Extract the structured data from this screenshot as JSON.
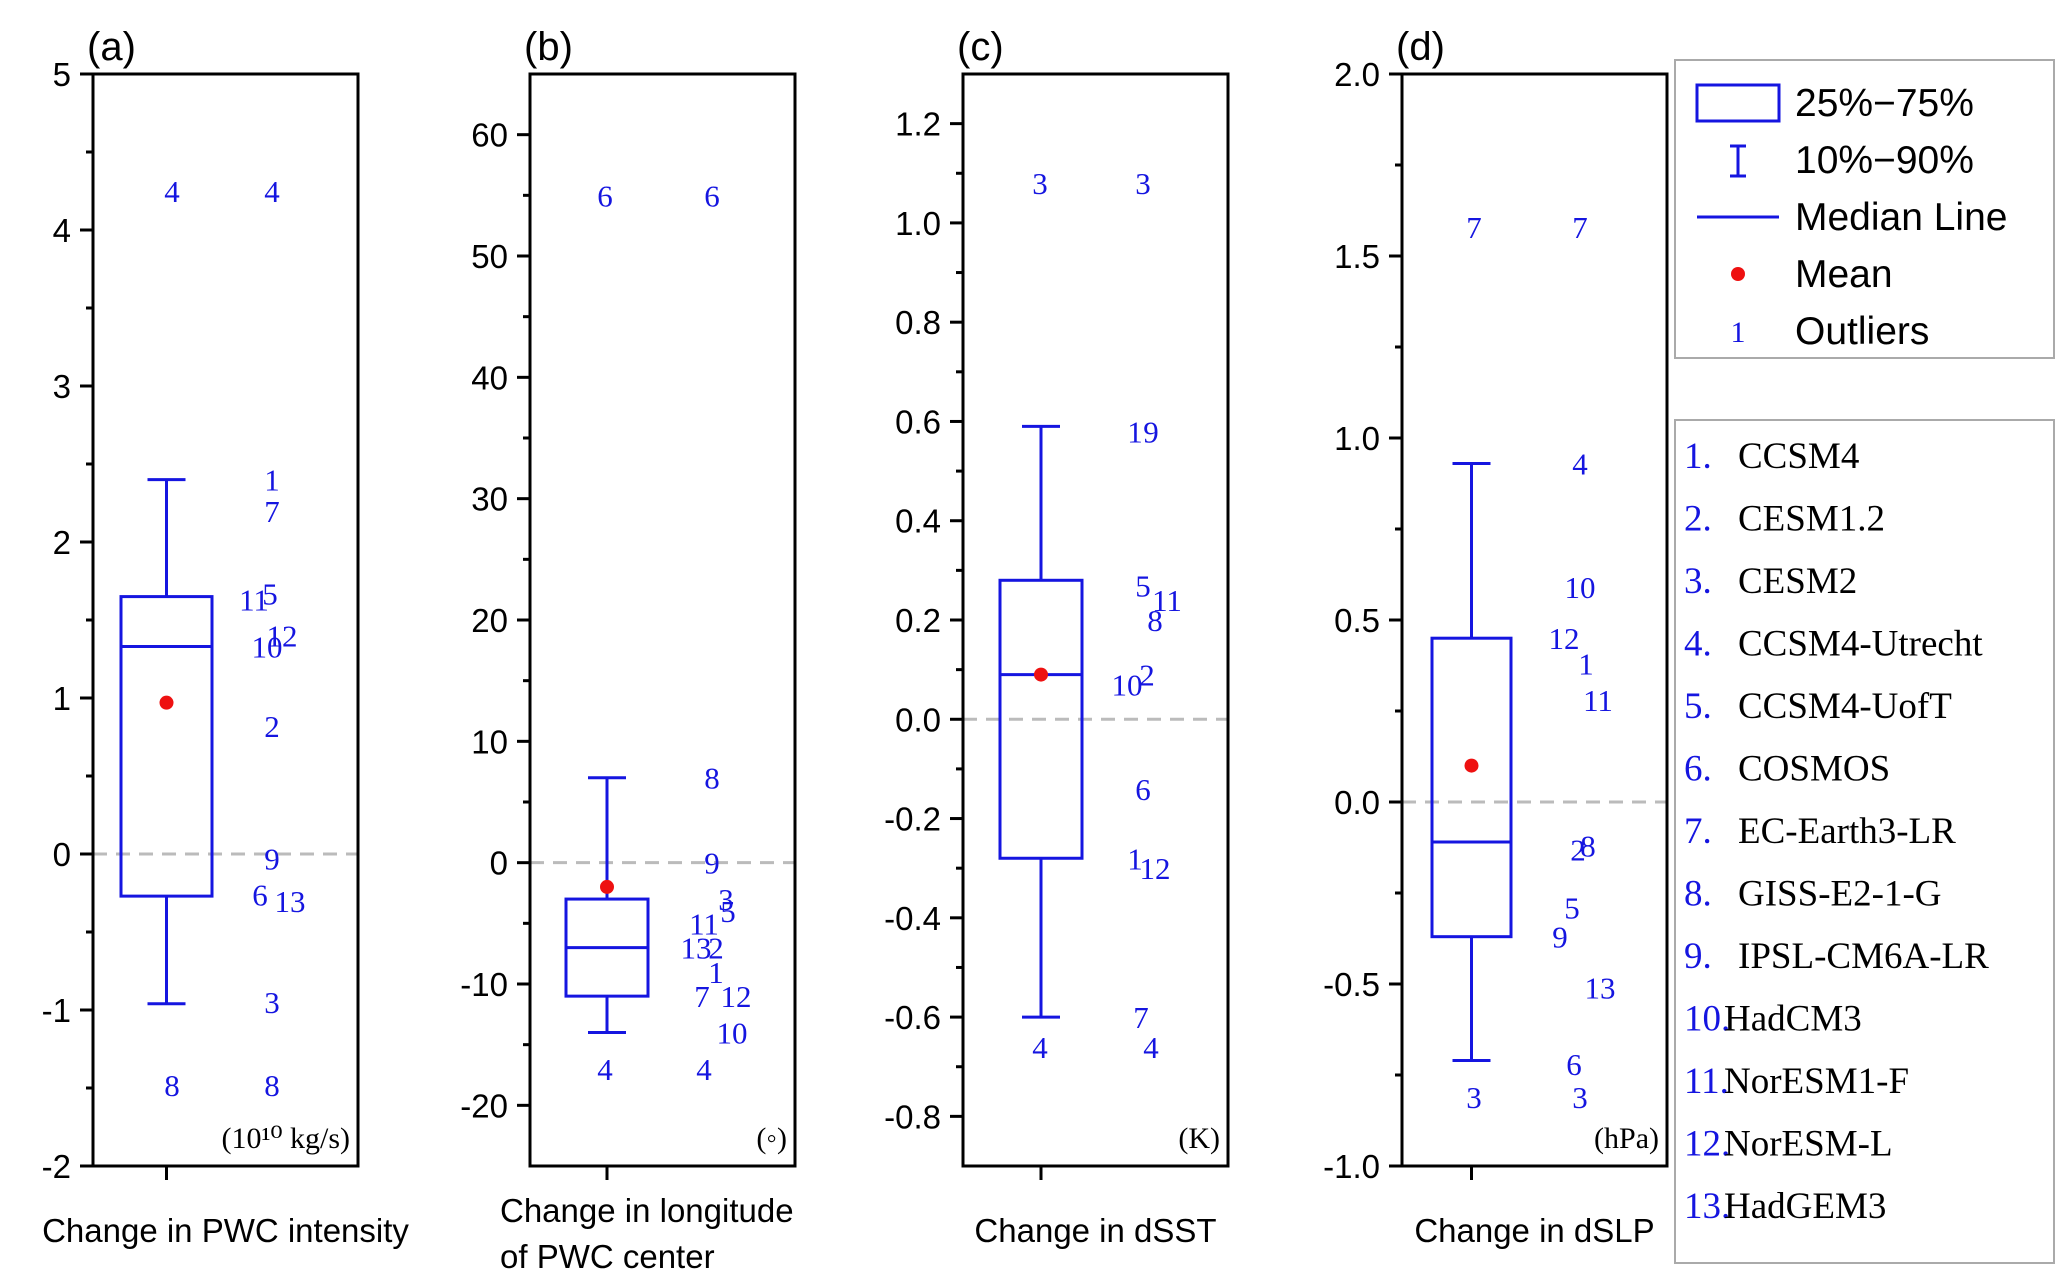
{
  "chart_data": [
    {
      "type": "box",
      "panel_label": "(a)",
      "xlabel": "Change in PWC intensity",
      "unit_text": "(10¹⁰ kg/s)",
      "ylim": [
        -2,
        5
      ],
      "yticks": [
        -2,
        -1,
        0,
        1,
        2,
        3,
        4,
        5
      ],
      "tick_labels": [
        "-2",
        "-1",
        "0",
        "1",
        "2",
        "3",
        "4",
        "5"
      ],
      "box": {
        "whisker_low": -0.96,
        "q1": -0.27,
        "median": 1.33,
        "q3": 1.65,
        "whisker_high": 2.4,
        "mean": 0.97
      },
      "zero_line": 0,
      "outliers_box": [
        {
          "label": "4",
          "value": 4.25
        },
        {
          "label": "8",
          "value": -1.48
        }
      ],
      "points": [
        {
          "label": "4",
          "value": 4.25
        },
        {
          "label": "1",
          "value": 2.4
        },
        {
          "label": "7",
          "value": 2.2
        },
        {
          "label": "5",
          "value": 1.67
        },
        {
          "label": "11",
          "value": 1.63
        },
        {
          "label": "12",
          "value": 1.4
        },
        {
          "label": "10",
          "value": 1.33
        },
        {
          "label": "2",
          "value": 0.82
        },
        {
          "label": "9",
          "value": -0.03
        },
        {
          "label": "6",
          "value": -0.26
        },
        {
          "label": "13",
          "value": -0.3
        },
        {
          "label": "3",
          "value": -0.95
        },
        {
          "label": "8",
          "value": -1.48
        }
      ]
    },
    {
      "type": "box",
      "panel_label": "(b)",
      "xlabel": [
        "Change in longitude",
        "of PWC center"
      ],
      "unit_text": "(◦)",
      "ylim": [
        -25,
        65
      ],
      "yticks": [
        -20,
        -10,
        0,
        10,
        20,
        30,
        40,
        50,
        60
      ],
      "tick_labels": [
        "-20",
        "-10",
        "0",
        "10",
        "20",
        "30",
        "40",
        "50",
        "60"
      ],
      "box": {
        "whisker_low": -14,
        "q1": -11,
        "median": -7,
        "q3": -3,
        "whisker_high": 7,
        "mean": -2
      },
      "zero_line": 0,
      "outliers_box": [
        {
          "label": "6",
          "value": 55
        },
        {
          "label": "4",
          "value": -17
        }
      ],
      "points": [
        {
          "label": "6",
          "value": 55
        },
        {
          "label": "8",
          "value": 7
        },
        {
          "label": "9",
          "value": 0
        },
        {
          "label": "3",
          "value": -3
        },
        {
          "label": "5",
          "value": -4
        },
        {
          "label": "11",
          "value": -5
        },
        {
          "label": "13",
          "value": -7
        },
        {
          "label": "2",
          "value": -7
        },
        {
          "label": "1",
          "value": -9
        },
        {
          "label": "7",
          "value": -11
        },
        {
          "label": "12",
          "value": -11
        },
        {
          "label": "10",
          "value": -14
        },
        {
          "label": "4",
          "value": -17
        }
      ]
    },
    {
      "type": "box",
      "panel_label": "(c)",
      "xlabel": "Change in dSST",
      "unit_text": "(K)",
      "ylim": [
        -0.9,
        1.3
      ],
      "yticks": [
        -0.8,
        -0.6,
        -0.4,
        -0.2,
        0.0,
        0.2,
        0.4,
        0.6,
        0.8,
        1.0,
        1.2
      ],
      "tick_labels": [
        "-0.8",
        "-0.6",
        "-0.4",
        "-0.2",
        "0.0",
        "0.2",
        "0.4",
        "0.6",
        "0.8",
        "1.0",
        "1.2"
      ],
      "box": {
        "whisker_low": -0.6,
        "q1": -0.28,
        "median": 0.09,
        "q3": 0.28,
        "whisker_high": 0.59,
        "mean": 0.09
      },
      "zero_line": 0,
      "outliers_box": [
        {
          "label": "3",
          "value": 1.08
        },
        {
          "label": "4",
          "value": -0.66
        }
      ],
      "points": [
        {
          "label": "3",
          "value": 1.08
        },
        {
          "label": "1",
          "value": 0.58
        },
        {
          "label": "9",
          "value": 0.58
        },
        {
          "label": "5",
          "value": 0.27
        },
        {
          "label": "11",
          "value": 0.24
        },
        {
          "label": "8",
          "value": 0.2
        },
        {
          "label": "2",
          "value": 0.09
        },
        {
          "label": "10",
          "value": 0.07
        },
        {
          "label": "6",
          "value": -0.14
        },
        {
          "label": "1",
          "value": -0.28
        },
        {
          "label": "12",
          "value": -0.3
        },
        {
          "label": "7",
          "value": -0.6
        },
        {
          "label": "4",
          "value": -0.66
        }
      ]
    },
    {
      "type": "box",
      "panel_label": "(d)",
      "xlabel": "Change in dSLP",
      "unit_text": "(hPa)",
      "ylim": [
        -1.0,
        2.0
      ],
      "yticks": [
        -1.0,
        -0.5,
        0.0,
        0.5,
        1.0,
        1.5,
        2.0
      ],
      "tick_labels": [
        "-1.0",
        "-0.5",
        "0.0",
        "0.5",
        "1.0",
        "1.5",
        "2.0"
      ],
      "box": {
        "whisker_low": -0.71,
        "q1": -0.37,
        "median": -0.11,
        "q3": 0.45,
        "whisker_high": 0.93,
        "mean": 0.1
      },
      "zero_line": 0,
      "outliers_box": [
        {
          "label": "7",
          "value": 1.58
        },
        {
          "label": "3",
          "value": -0.81
        }
      ],
      "points": [
        {
          "label": "7",
          "value": 1.58
        },
        {
          "label": "4",
          "value": 0.93
        },
        {
          "label": "10",
          "value": 0.59
        },
        {
          "label": "12",
          "value": 0.45
        },
        {
          "label": "1",
          "value": 0.38
        },
        {
          "label": "11",
          "value": 0.28
        },
        {
          "label": "8",
          "value": -0.12
        },
        {
          "label": "2",
          "value": -0.13
        },
        {
          "label": "5",
          "value": -0.29
        },
        {
          "label": "9",
          "value": -0.37
        },
        {
          "label": "13",
          "value": -0.51
        },
        {
          "label": "6",
          "value": -0.72
        },
        {
          "label": "3",
          "value": -0.81
        }
      ]
    }
  ],
  "legend": {
    "placement": "top-right",
    "items": [
      {
        "symbol": "box",
        "label": "25%−75%"
      },
      {
        "symbol": "whisker",
        "label": "10%−90%"
      },
      {
        "symbol": "line",
        "label": "Median Line"
      },
      {
        "symbol": "dot",
        "label": "Mean"
      },
      {
        "symbol": "text",
        "symbol_text": "1",
        "label": "Outliers"
      }
    ]
  },
  "models": [
    {
      "num": "1.",
      "name": "CCSM4"
    },
    {
      "num": "2.",
      "name": "CESM1.2"
    },
    {
      "num": "3.",
      "name": "CESM2"
    },
    {
      "num": "4.",
      "name": "CCSM4-Utrecht"
    },
    {
      "num": "5.",
      "name": "CCSM4-UofT"
    },
    {
      "num": "6.",
      "name": "COSMOS"
    },
    {
      "num": "7.",
      "name": "EC-Earth3-LR"
    },
    {
      "num": "8.",
      "name": "GISS-E2-1-G"
    },
    {
      "num": "9.",
      "name": "IPSL-CM6A-LR"
    },
    {
      "num": "10.",
      "name": "HadCM3"
    },
    {
      "num": "11.",
      "name": "NorESM1-F"
    },
    {
      "num": "12.",
      "name": "NorESM-L"
    },
    {
      "num": "13.",
      "name": "HadGEM3"
    }
  ],
  "colors": {
    "box": "#1515e0",
    "mean": "#ee1111",
    "zero_line": "#bbbbbb",
    "axis": "#000000",
    "legend_border": "#aaaaaa"
  }
}
